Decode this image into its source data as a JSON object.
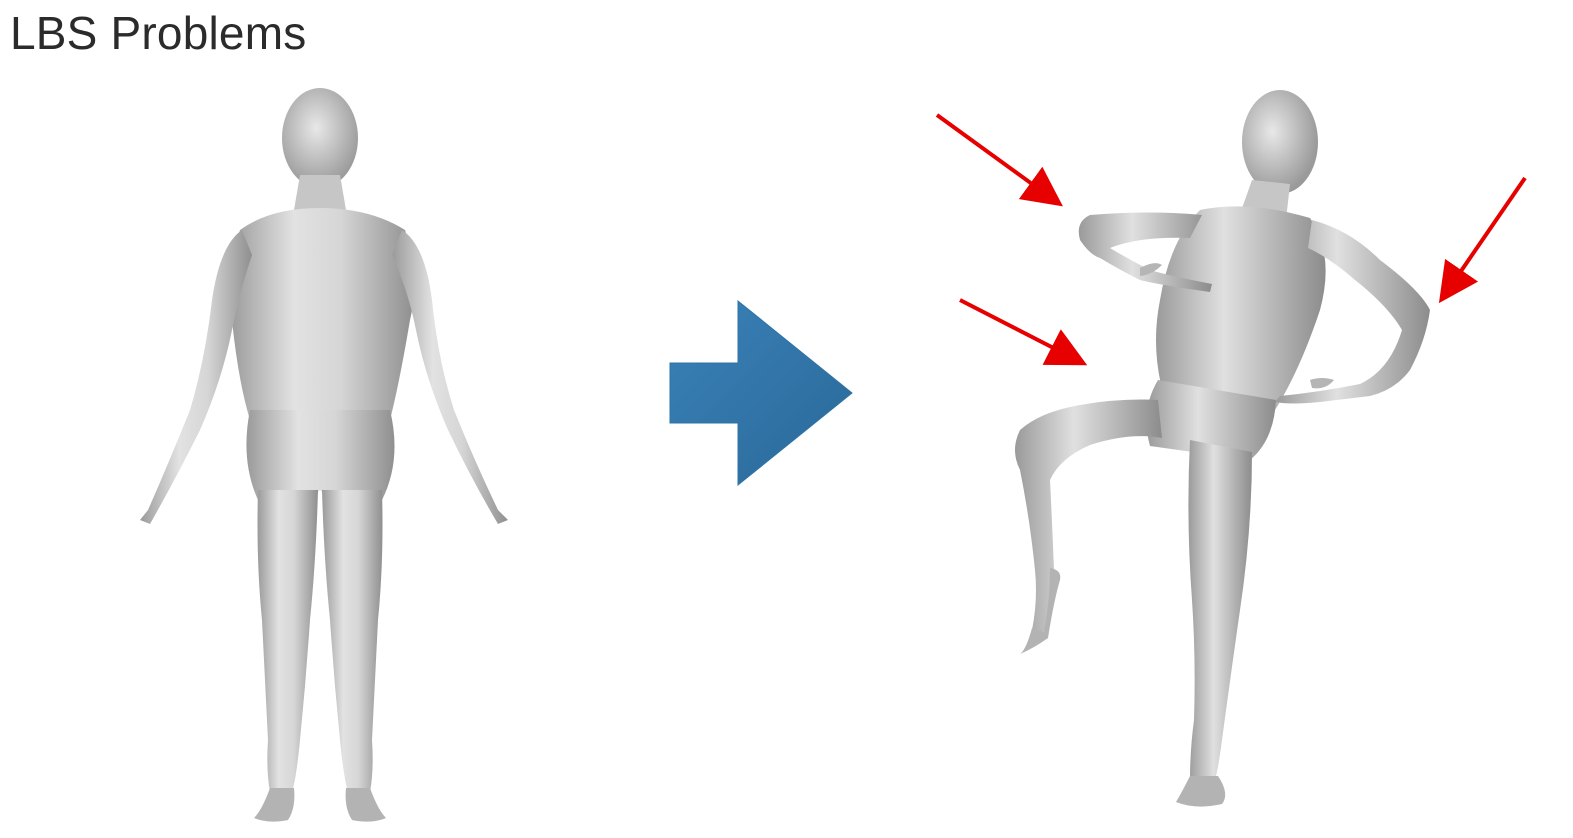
{
  "slide": {
    "title": "LBS Problems"
  },
  "colors": {
    "body_light": "#e6e6e6",
    "body_mid": "#bdbdbd",
    "body_dark": "#8c8c8c",
    "arrow_blue": "#2f73a6",
    "annotation_red": "#e60000",
    "title_text": "#2b2b2b"
  },
  "figures": {
    "rest_pose": "human-body-rest-pose",
    "deformed_pose": "human-body-deformed-pose"
  },
  "annotations": {
    "arrow_count": 3
  }
}
